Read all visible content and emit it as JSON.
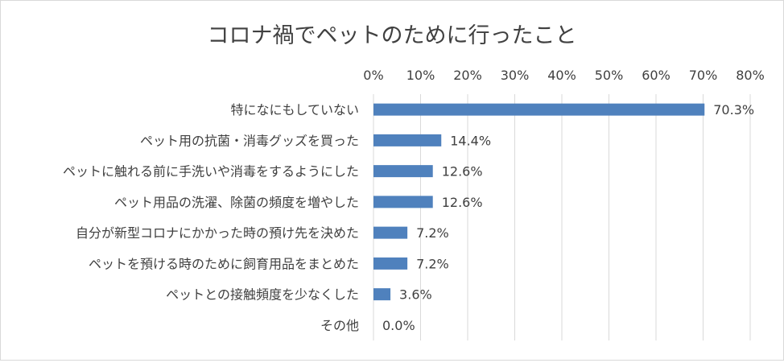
{
  "chart_data": {
    "type": "bar",
    "orientation": "horizontal",
    "title": "コロナ禍でペットのために行ったこと",
    "xlabel": "",
    "ylabel": "",
    "xlim": [
      0,
      80
    ],
    "x_ticks": [
      "0%",
      "10%",
      "20%",
      "30%",
      "40%",
      "50%",
      "60%",
      "70%",
      "80%"
    ],
    "x_tick_values": [
      0,
      10,
      20,
      30,
      40,
      50,
      60,
      70,
      80
    ],
    "axis_position": "top",
    "grid": true,
    "legend": false,
    "bar_color": "#4f81bd",
    "categories": [
      "特になにもしていない",
      "ペット用の抗菌・消毒グッズを買った",
      "ペットに触れる前に手洗いや消毒をするようにした",
      "ペット用品の洗濯、除菌の頻度を増やした",
      "自分が新型コロナにかかった時の預け先を決めた",
      "ペットを預ける時のために飼育用品をまとめた",
      "ペットとの接触頻度を少なくした",
      "その他"
    ],
    "values": [
      70.3,
      14.4,
      12.6,
      12.6,
      7.2,
      7.2,
      3.6,
      0.0
    ],
    "data_labels": [
      "70.3%",
      "14.4%",
      "12.6%",
      "12.6%",
      "7.2%",
      "7.2%",
      "3.6%",
      "0.0%"
    ]
  }
}
